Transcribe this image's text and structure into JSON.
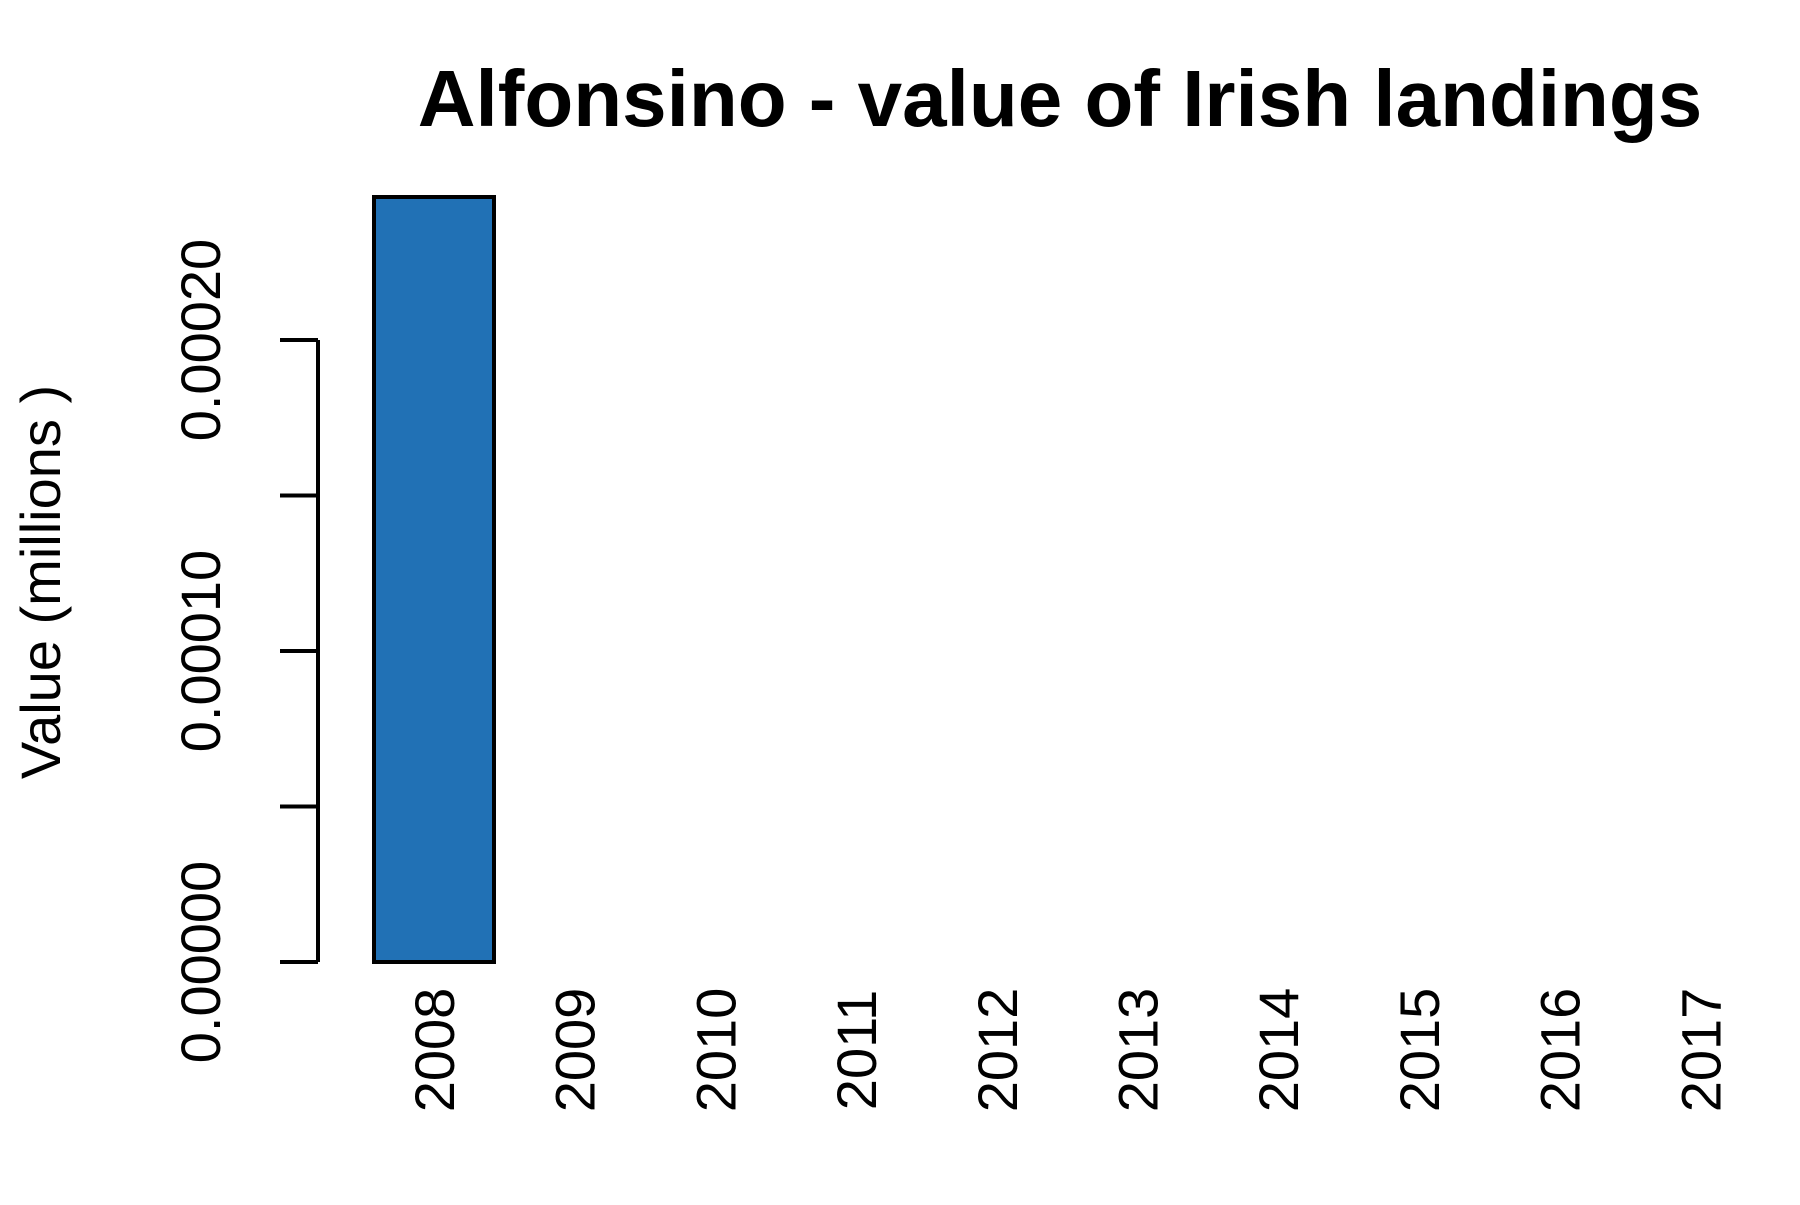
{
  "chart_data": {
    "type": "bar",
    "title": "Alfonsino - value of Irish landings",
    "xlabel": "",
    "ylabel": "Value (millions )",
    "categories": [
      "2008",
      "2009",
      "2010",
      "2011",
      "2012",
      "2013",
      "2014",
      "2015",
      "2016",
      "2017"
    ],
    "values": [
      0.000246,
      null,
      null,
      null,
      null,
      null,
      null,
      null,
      null,
      null
    ],
    "yticks": [
      "0.00000",
      "0.00010",
      "0.00020"
    ],
    "ytick_values": [
      0,
      5e-05,
      0.0001,
      0.00015,
      0.0002
    ],
    "ylim": [
      0,
      0.000246
    ],
    "grid": false,
    "bar_color": "#2171b5"
  }
}
